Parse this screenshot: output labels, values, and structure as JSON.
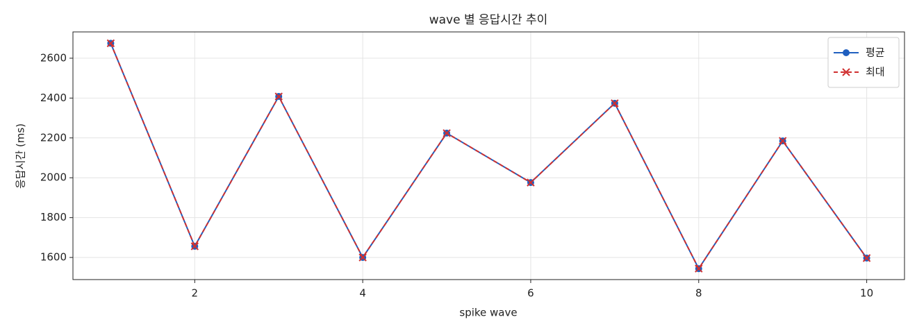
{
  "chart_data": {
    "type": "line",
    "title": "wave 별 응답시간 추이",
    "x_label": "spike wave",
    "y_label": "응답시간 (ms)",
    "x": [
      1,
      2,
      3,
      4,
      5,
      6,
      7,
      8,
      9,
      10
    ],
    "series": [
      {
        "name": "평균",
        "color": "#1f5fbf",
        "line_style": "solid",
        "marker": "circle",
        "values": [
          2675,
          1656,
          2408,
          1600,
          2224,
          1976,
          2374,
          1544,
          2185,
          1597
        ]
      },
      {
        "name": "최대",
        "color": "#d03030",
        "line_style": "dashed",
        "marker": "x",
        "values": [
          2675,
          1656,
          2408,
          1600,
          2224,
          1976,
          2374,
          1544,
          2185,
          1597
        ]
      }
    ],
    "xlim": [
      0.55,
      10.45
    ],
    "xticks": [
      2,
      4,
      6,
      8,
      10
    ],
    "ylim": [
      1489,
      2732
    ],
    "yticks": [
      1600,
      1800,
      2000,
      2200,
      2400,
      2600
    ],
    "grid": true,
    "legend": "upper-right"
  }
}
